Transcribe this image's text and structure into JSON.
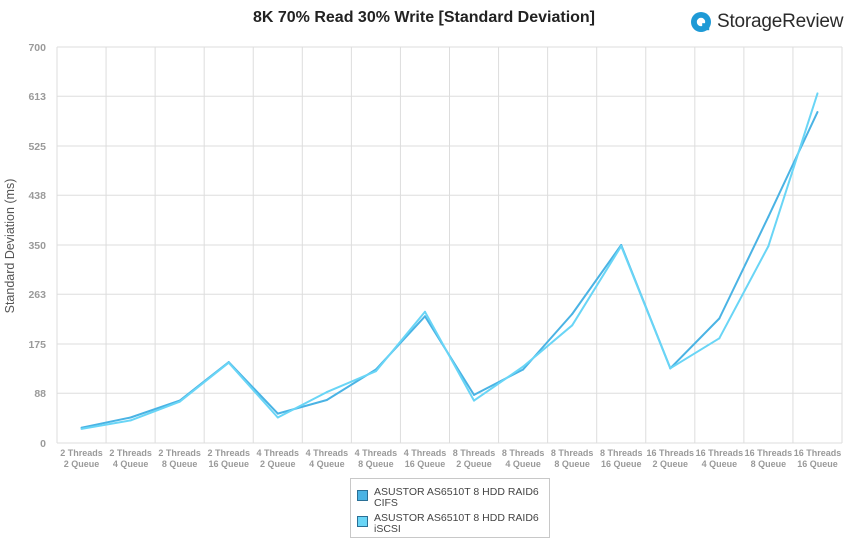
{
  "header": {
    "title": "8K 70% Read 30% Write [Standard Deviation]",
    "brand_name": "StorageReview"
  },
  "chart_data": {
    "type": "line",
    "title": "8K 70% Read 30% Write [Standard Deviation]",
    "xlabel": "",
    "ylabel": "Standard Deviation (ms)",
    "ylim": [
      0,
      700
    ],
    "yticks": [
      "0",
      "88",
      "175",
      "263",
      "350",
      "438",
      "525",
      "613",
      "700"
    ],
    "grid": true,
    "legend_position": "bottom",
    "categories": [
      [
        "2 Threads",
        "2 Queue"
      ],
      [
        "2 Threads",
        "4 Queue"
      ],
      [
        "2 Threads",
        "8 Queue"
      ],
      [
        "2 Threads",
        "16 Queue"
      ],
      [
        "4 Threads",
        "2 Queue"
      ],
      [
        "4 Threads",
        "4 Queue"
      ],
      [
        "4 Threads",
        "8 Queue"
      ],
      [
        "4 Threads",
        "16 Queue"
      ],
      [
        "8 Threads",
        "2 Queue"
      ],
      [
        "8 Threads",
        "4 Queue"
      ],
      [
        "8 Threads",
        "8 Queue"
      ],
      [
        "8 Threads",
        "16 Queue"
      ],
      [
        "16 Threads",
        "2 Queue"
      ],
      [
        "16 Threads",
        "4 Queue"
      ],
      [
        "16 Threads",
        "8 Queue"
      ],
      [
        "16 Threads",
        "16 Queue"
      ]
    ],
    "series": [
      {
        "name": "ASUSTOR AS6510T 8 HDD RAID6 CIFS",
        "name_lines": [
          "ASUSTOR AS6510T 8 HDD RAID6",
          "CIFS"
        ],
        "color": "#4ab3e4",
        "values": [
          27,
          45,
          75,
          143,
          52,
          76,
          130,
          224,
          85,
          130,
          228,
          350,
          132,
          220,
          400,
          585
        ]
      },
      {
        "name": "ASUSTOR AS6510T 8 HDD RAID6 iSCSI",
        "name_lines": [
          "ASUSTOR AS6510T 8 HDD RAID6",
          "iSCSI"
        ],
        "color": "#69d5f6",
        "values": [
          25,
          40,
          73,
          142,
          45,
          90,
          127,
          232,
          75,
          135,
          208,
          348,
          132,
          185,
          348,
          618
        ]
      }
    ]
  }
}
